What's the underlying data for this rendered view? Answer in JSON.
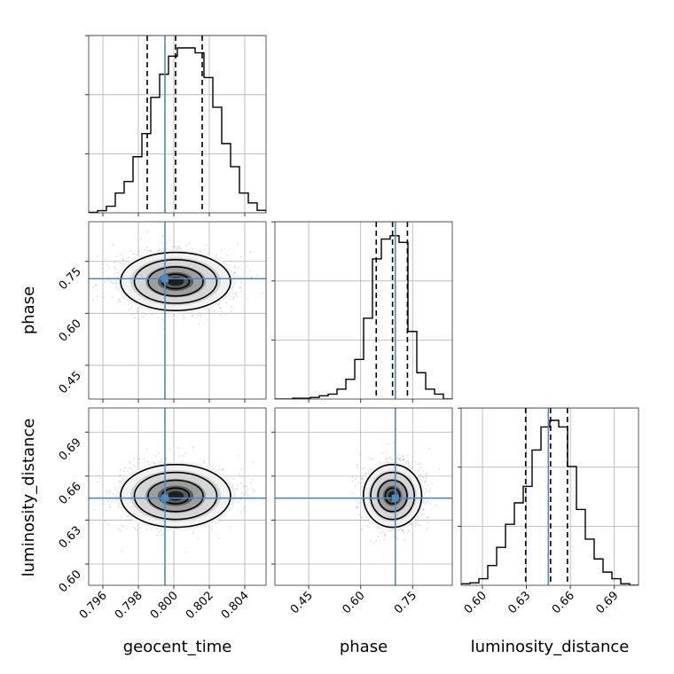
{
  "colors": {
    "truth": "#4a8bc4",
    "hist": "#000000",
    "grid": "#b0b0b0",
    "scatter": "#9a9a9a",
    "density_levels": [
      "#f2f2f2",
      "#d6d6d6",
      "#9e9e9e",
      "#5c5c5c",
      "#1e1e1e"
    ]
  },
  "chart_data": {
    "type": "corner",
    "parameters": [
      "geocent_time",
      "phase",
      "luminosity_distance"
    ],
    "axis_labels": {
      "x": [
        "geocent_time",
        "phase",
        "luminosity_distance"
      ],
      "y": [
        "",
        "phase",
        "luminosity_distance"
      ]
    },
    "ranges": {
      "geocent_time": [
        0.7952,
        0.8052
      ],
      "phase": [
        0.3525,
        0.8645
      ],
      "luminosity_distance": [
        0.5855,
        0.7065
      ]
    },
    "ticks": {
      "geocent_time": [
        0.796,
        0.798,
        0.8,
        0.802,
        0.804
      ],
      "phase": [
        0.45,
        0.6,
        0.75
      ],
      "luminosity_distance": [
        0.6,
        0.63,
        0.66,
        0.69
      ]
    },
    "tick_labels": {
      "geocent_time": [
        "0.796",
        "0.798",
        "0.800",
        "0.802",
        "0.804"
      ],
      "phase": [
        "0.45",
        "0.60",
        "0.75"
      ],
      "luminosity_distance": [
        "0.60",
        "0.63",
        "0.66",
        "0.69"
      ]
    },
    "truths": {
      "geocent_time": 0.7995,
      "phase": 0.7,
      "luminosity_distance": 0.645
    },
    "quantiles": {
      "geocent_time": [
        0.7985,
        0.8001,
        0.8016
      ],
      "phase": [
        0.645,
        0.692,
        0.735
      ],
      "luminosity_distance": [
        0.6295,
        0.6465,
        0.658
      ]
    },
    "histograms": {
      "geocent_time": [
        0.003,
        0.013,
        0.04,
        0.12,
        0.19,
        0.34,
        0.48,
        0.7,
        0.84,
        0.95,
        1.0,
        1.0,
        0.97,
        0.82,
        0.64,
        0.42,
        0.28,
        0.12,
        0.06,
        0.015
      ],
      "phase": [
        0.0,
        0.0,
        0.005,
        0.005,
        0.01,
        0.02,
        0.03,
        0.06,
        0.12,
        0.24,
        0.49,
        0.85,
        0.97,
        0.99,
        0.95,
        0.41,
        0.16,
        0.06,
        0.03,
        0.0
      ],
      "luminosity_distance": [
        0.01,
        0.015,
        0.04,
        0.12,
        0.23,
        0.37,
        0.5,
        0.6,
        0.82,
        0.96,
        1.0,
        0.96,
        0.72,
        0.46,
        0.28,
        0.16,
        0.08,
        0.04,
        0.01,
        0.0
      ]
    },
    "spread": {
      "geocent_time": 0.00155,
      "phase": 0.042,
      "luminosity_distance": 0.0107
    },
    "grid": true
  }
}
